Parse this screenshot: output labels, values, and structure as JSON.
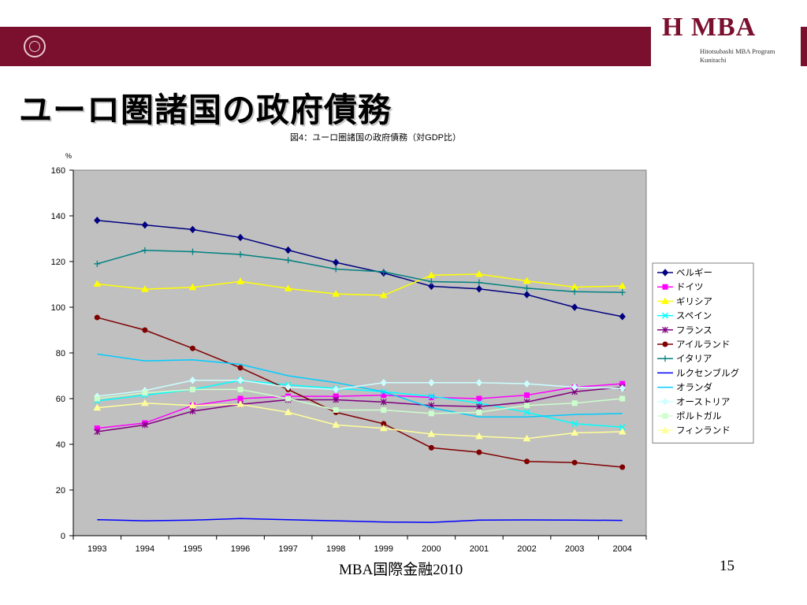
{
  "header": {
    "logo_mark": "H MBA",
    "logo_sub_line1": "Hitotsubashi MBA Program",
    "logo_sub_line2": "Kunitachi"
  },
  "slide": {
    "title": "ユーロ圏諸国の政府債務",
    "footer": "MBA国際金融2010",
    "page_number": "15"
  },
  "colors": {
    "banner": "#7a0f2e",
    "plot_bg": "#c0c0c0"
  },
  "chart_data": {
    "type": "line",
    "title": "図4：ユーロ圏諸国の政府債務（対GDP比）",
    "ylabel": "%",
    "xlabel": "",
    "ylim": [
      0,
      160
    ],
    "yticks": [
      0,
      20,
      40,
      60,
      80,
      100,
      120,
      140,
      160
    ],
    "grid": false,
    "legend_position": "right",
    "categories": [
      "1993",
      "1994",
      "1995",
      "1996",
      "1997",
      "1998",
      "1999",
      "2000",
      "2001",
      "2002",
      "2003",
      "2004"
    ],
    "series": [
      {
        "name": "ベルギー",
        "color": "#000080",
        "marker": "diamond",
        "values": [
          138,
          136,
          134,
          130.5,
          125,
          119.6,
          115,
          109.2,
          108,
          105.5,
          100,
          95.9
        ]
      },
      {
        "name": "ドイツ",
        "color": "#ff00ff",
        "marker": "square",
        "values": [
          47,
          49.3,
          57,
          60,
          61,
          61,
          61.5,
          60.5,
          60,
          61.5,
          65,
          66.5
        ]
      },
      {
        "name": "ギリシア",
        "color": "#ffff00",
        "marker": "triangle",
        "values": [
          110.2,
          107.9,
          108.7,
          111.3,
          108.2,
          105.8,
          105.2,
          114,
          114.5,
          111.5,
          108.8,
          109.3
        ]
      },
      {
        "name": "スペイン",
        "color": "#00ffff",
        "marker": "x",
        "values": [
          59,
          61.5,
          64,
          68,
          66,
          64.5,
          63,
          61,
          58,
          54,
          49,
          47.5
        ]
      },
      {
        "name": "フランス",
        "color": "#800080",
        "marker": "star",
        "values": [
          45.5,
          48.5,
          54.5,
          57.5,
          59.5,
          59.5,
          58.5,
          57,
          56.5,
          58.5,
          63,
          65
        ]
      },
      {
        "name": "アイルランド",
        "color": "#800000",
        "marker": "circle",
        "values": [
          95.5,
          90,
          82,
          73.5,
          64,
          54,
          49,
          38.5,
          36.5,
          32.5,
          32,
          30
        ]
      },
      {
        "name": "イタリア",
        "color": "#008080",
        "marker": "plus",
        "values": [
          119,
          124.9,
          124.3,
          123.1,
          120.6,
          116.7,
          115.5,
          111.2,
          110.8,
          108.3,
          106.8,
          106.5
        ]
      },
      {
        "name": "ルクセンブルグ",
        "color": "#0000ff",
        "marker": "none",
        "values": [
          7,
          6.5,
          6.8,
          7.5,
          7,
          6.5,
          6,
          5.8,
          6.8,
          6.9,
          6.8,
          6.7
        ]
      },
      {
        "name": "オランダ",
        "color": "#00ccff",
        "marker": "none",
        "values": [
          79.5,
          76.5,
          77,
          75,
          70,
          67,
          63,
          56,
          52,
          52,
          53,
          53.5
        ]
      },
      {
        "name": "オーストリア",
        "color": "#ccffff",
        "marker": "diamond",
        "values": [
          61,
          63.5,
          68,
          68,
          65,
          64,
          67,
          67,
          67,
          66.5,
          65,
          64.5
        ]
      },
      {
        "name": "ポルトガル",
        "color": "#ccffcc",
        "marker": "square",
        "values": [
          60,
          62.5,
          64,
          64,
          60,
          55,
          55,
          53.5,
          54,
          57,
          58,
          60
        ]
      },
      {
        "name": "フィンランド",
        "color": "#ffff99",
        "marker": "triangle",
        "values": [
          56,
          58,
          57,
          57.5,
          54,
          48.5,
          47,
          44.5,
          43.5,
          42.5,
          45,
          45.5
        ]
      }
    ]
  }
}
